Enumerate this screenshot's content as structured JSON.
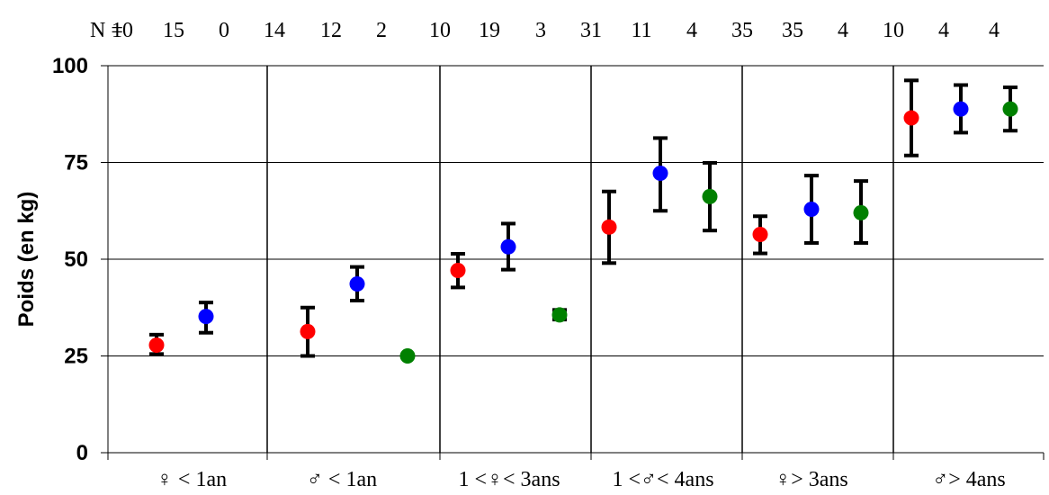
{
  "chart_data": {
    "type": "scatter",
    "title": "",
    "xlabel": "",
    "ylabel": "Poids (en kg)",
    "ylim": [
      0,
      100
    ],
    "yticks": [
      "0",
      "25",
      "50",
      "75",
      "100"
    ],
    "grid": true,
    "n_prefix": "N =",
    "colors": [
      "#ff0000",
      "#0000ff",
      "#008000"
    ],
    "categories": [
      "♀ < 1an",
      "♂ < 1an",
      "1 <♀< 3ans",
      "1 <♂< 4ans",
      "♀> 3ans",
      "♂> 4ans"
    ],
    "n_values": [
      "10",
      "15",
      "0",
      "14",
      "12",
      "2",
      "10",
      "19",
      "3",
      "31",
      "11",
      "4",
      "35",
      "35",
      "4",
      "10",
      "4",
      "4"
    ],
    "series": [
      {
        "values": [
          27.8,
          31.3,
          47.1,
          58.3,
          56.4,
          86.5
        ],
        "lower": [
          25.5,
          25.0,
          42.7,
          49.0,
          51.5,
          76.8
        ],
        "upper": [
          30.5,
          37.5,
          51.4,
          67.5,
          61.1,
          96.2
        ]
      },
      {
        "values": [
          35.2,
          43.6,
          53.2,
          72.2,
          62.9,
          88.8
        ],
        "lower": [
          31.0,
          39.3,
          47.3,
          62.5,
          54.2,
          82.7
        ],
        "upper": [
          38.8,
          48.0,
          59.2,
          81.3,
          71.6,
          95.0
        ]
      },
      {
        "values": [
          null,
          25.0,
          35.6,
          66.2,
          62.0,
          88.8
        ],
        "lower": [
          null,
          null,
          34.4,
          57.4,
          54.2,
          83.2
        ],
        "upper": [
          null,
          null,
          36.9,
          74.9,
          70.2,
          94.4
        ]
      }
    ]
  }
}
